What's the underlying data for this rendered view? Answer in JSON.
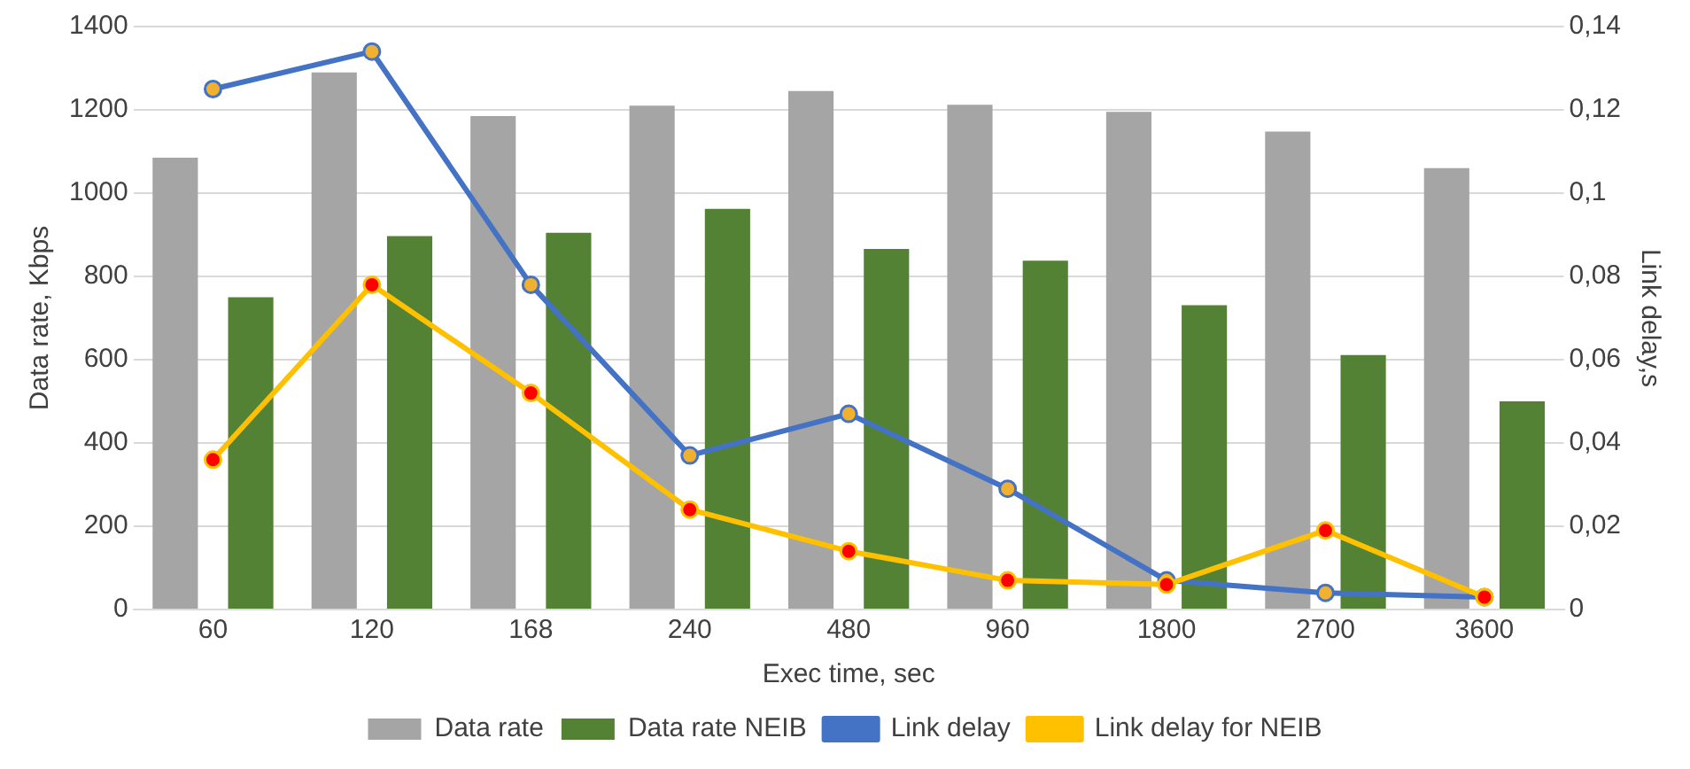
{
  "chart_data": {
    "type": "bar",
    "xlabel": "Exec time, sec",
    "ylabel": "Data rate, Kbps",
    "y2label": "Link delay,s",
    "categories": [
      "60",
      "120",
      "168",
      "240",
      "480",
      "960",
      "1800",
      "2700",
      "3600"
    ],
    "series": [
      {
        "name": "Data rate",
        "color": "#a5a5a5",
        "values": [
          1085,
          1290,
          1185,
          1210,
          1245,
          1212,
          1195,
          1148,
          1060
        ]
      },
      {
        "name": "Data rate NEIB",
        "color": "#548235",
        "values": [
          750,
          897,
          905,
          962,
          866,
          838,
          731,
          611,
          500
        ]
      },
      {
        "name": "Link delay",
        "type": "line",
        "axis": "y2",
        "color": "#4472c4",
        "values": [
          0.125,
          0.134,
          0.078,
          0.037,
          0.047,
          0.029,
          0.007,
          0.004,
          0.003
        ]
      },
      {
        "name": "Link delay for NEIB",
        "type": "line",
        "axis": "y2",
        "color": "#ffc000",
        "values": [
          0.036,
          0.078,
          0.052,
          0.024,
          0.014,
          0.007,
          0.006,
          0.019,
          0.003
        ]
      }
    ],
    "ylim": [
      0,
      1400
    ],
    "yticks": [
      0,
      200,
      400,
      600,
      800,
      1000,
      1200,
      1400
    ],
    "y2lim": [
      0,
      0.14
    ],
    "y2ticks": [
      {
        "value": 0,
        "label": "0"
      },
      {
        "value": 0.02,
        "label": "0,02"
      },
      {
        "value": 0.04,
        "label": "0,04"
      },
      {
        "value": 0.06,
        "label": "0,06"
      },
      {
        "value": 0.08,
        "label": "0,08"
      },
      {
        "value": 0.1,
        "label": "0,1"
      },
      {
        "value": 0.12,
        "label": "0,12"
      },
      {
        "value": 0.14,
        "label": "0,14"
      }
    ],
    "grid": "y",
    "legend": "bottom",
    "marker": "circle",
    "line_style": "solid"
  }
}
